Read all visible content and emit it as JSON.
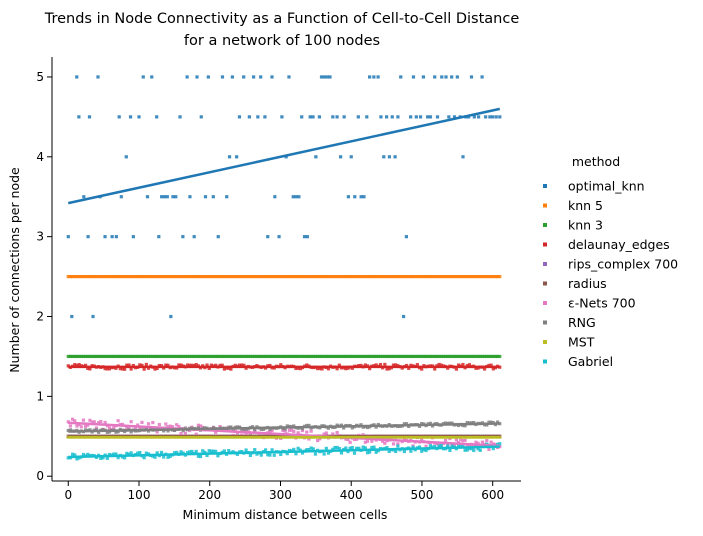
{
  "chart_data": {
    "type": "scatter",
    "title": "Trends in Node Connectivity as a Function of Cell-to-Cell Distance",
    "subtitle": "for a network of 100 nodes",
    "xlabel": "Minimum distance between cells",
    "ylabel": "Number of connections per node",
    "xlim": [
      -23,
      640
    ],
    "ylim": [
      -0.06,
      5.25
    ],
    "xticks": [
      0,
      100,
      200,
      300,
      400,
      500,
      600
    ],
    "yticks": [
      0,
      1,
      2,
      3,
      4,
      5
    ],
    "grid": false,
    "legend_title": "method",
    "legend_position": "right",
    "x_range": [
      0,
      610
    ],
    "series": [
      {
        "name": "optimal_knn",
        "color": "#1f77b4",
        "points_note": "discrete values",
        "trend": [
          [
            0,
            3.42
          ],
          [
            610,
            4.6
          ]
        ],
        "points": [
          [
            0,
            3
          ],
          [
            5,
            2
          ],
          [
            12,
            5
          ],
          [
            15,
            4.5
          ],
          [
            22,
            3.5
          ],
          [
            28,
            3
          ],
          [
            30,
            4.5
          ],
          [
            35,
            2
          ],
          [
            42,
            5
          ],
          [
            45,
            3.5
          ],
          [
            52,
            3
          ],
          [
            62,
            3
          ],
          [
            68,
            3
          ],
          [
            72,
            4.5
          ],
          [
            75,
            3.5
          ],
          [
            82,
            4
          ],
          [
            88,
            4.5
          ],
          [
            92,
            3
          ],
          [
            100,
            4.5
          ],
          [
            106,
            5
          ],
          [
            112,
            3.5
          ],
          [
            118,
            5
          ],
          [
            125,
            4.5
          ],
          [
            128,
            3
          ],
          [
            132,
            3.5
          ],
          [
            136,
            3.5
          ],
          [
            140,
            3.5
          ],
          [
            145,
            2
          ],
          [
            148,
            3.5
          ],
          [
            152,
            3.5
          ],
          [
            158,
            4.5
          ],
          [
            162,
            3
          ],
          [
            168,
            5
          ],
          [
            172,
            3.5
          ],
          [
            178,
            3
          ],
          [
            182,
            5
          ],
          [
            188,
            4.5
          ],
          [
            194,
            3.5
          ],
          [
            198,
            5
          ],
          [
            205,
            3.5
          ],
          [
            212,
            3
          ],
          [
            218,
            5
          ],
          [
            224,
            3.5
          ],
          [
            228,
            4
          ],
          [
            232,
            5
          ],
          [
            238,
            4
          ],
          [
            242,
            4.5
          ],
          [
            248,
            5
          ],
          [
            256,
            4.5
          ],
          [
            262,
            5
          ],
          [
            268,
            4.5
          ],
          [
            272,
            5
          ],
          [
            278,
            4.5
          ],
          [
            282,
            3
          ],
          [
            288,
            5
          ],
          [
            292,
            3.5
          ],
          [
            298,
            3
          ],
          [
            302,
            4.5
          ],
          [
            308,
            4
          ],
          [
            312,
            5
          ],
          [
            318,
            3.5
          ],
          [
            322,
            3.5
          ],
          [
            326,
            3.5
          ],
          [
            330,
            4.5
          ],
          [
            334,
            3
          ],
          [
            338,
            3
          ],
          [
            342,
            4.5
          ],
          [
            346,
            4.5
          ],
          [
            350,
            4
          ],
          [
            355,
            4.5
          ],
          [
            358,
            5
          ],
          [
            362,
            5
          ],
          [
            366,
            5
          ],
          [
            370,
            5
          ],
          [
            374,
            4.5
          ],
          [
            380,
            4.5
          ],
          [
            385,
            4
          ],
          [
            390,
            4.5
          ],
          [
            396,
            3.5
          ],
          [
            400,
            4
          ],
          [
            405,
            3.5
          ],
          [
            410,
            4.5
          ],
          [
            414,
            3.5
          ],
          [
            418,
            3.5
          ],
          [
            422,
            4.5
          ],
          [
            426,
            5
          ],
          [
            432,
            5
          ],
          [
            438,
            5
          ],
          [
            442,
            4.5
          ],
          [
            446,
            4
          ],
          [
            450,
            4.5
          ],
          [
            454,
            4
          ],
          [
            458,
            4.5
          ],
          [
            462,
            4
          ],
          [
            466,
            4.5
          ],
          [
            470,
            5
          ],
          [
            474,
            2
          ],
          [
            478,
            3
          ],
          [
            484,
            4.5
          ],
          [
            488,
            5
          ],
          [
            492,
            4.5
          ],
          [
            498,
            4.5
          ],
          [
            502,
            5
          ],
          [
            508,
            4.5
          ],
          [
            512,
            4.5
          ],
          [
            518,
            5
          ],
          [
            522,
            4.5
          ],
          [
            528,
            5
          ],
          [
            534,
            5
          ],
          [
            538,
            4.5
          ],
          [
            542,
            5
          ],
          [
            546,
            4.5
          ],
          [
            550,
            5
          ],
          [
            554,
            4.5
          ],
          [
            558,
            4
          ],
          [
            562,
            4.5
          ],
          [
            566,
            4.5
          ],
          [
            570,
            5
          ],
          [
            574,
            4.5
          ],
          [
            580,
            4.5
          ],
          [
            585,
            5
          ],
          [
            590,
            4.5
          ],
          [
            596,
            4.5
          ],
          [
            600,
            4.5
          ],
          [
            605,
            4.5
          ],
          [
            610,
            4.5
          ]
        ]
      },
      {
        "name": "knn 5",
        "color": "#ff7f0e",
        "mean": 2.5,
        "spread": 0,
        "trend": null
      },
      {
        "name": "knn 3",
        "color": "#2ca02c",
        "mean": 1.5,
        "spread": 0,
        "trend": null
      },
      {
        "name": "delaunay_edges",
        "color": "#d62728",
        "mean": 1.37,
        "spread": 0.03,
        "trend": null
      },
      {
        "name": "rips_complex 700",
        "color": "#9467bd",
        "mean": 0.5,
        "spread": 0,
        "trend": null
      },
      {
        "name": "radius",
        "color": "#8c564b",
        "mean": 0.5,
        "spread": 0,
        "trend": null
      },
      {
        "name": "ε-Nets 700",
        "color": "#e377c2",
        "trend": [
          [
            0,
            0.67
          ],
          [
            610,
            0.38
          ]
        ],
        "spread": 0.06
      },
      {
        "name": "RNG",
        "color": "#7f7f7f",
        "trend": [
          [
            0,
            0.56
          ],
          [
            610,
            0.66
          ]
        ],
        "spread": 0.02
      },
      {
        "name": "MST",
        "color": "#bcbd22",
        "mean": 0.49,
        "spread": 0,
        "trend": null
      },
      {
        "name": "Gabriel",
        "color": "#17becf",
        "trend": [
          [
            0,
            0.24
          ],
          [
            610,
            0.37
          ]
        ],
        "spread": 0.04
      }
    ]
  }
}
